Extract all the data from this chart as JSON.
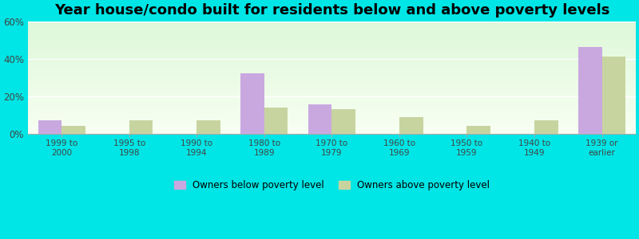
{
  "title": "Year house/condo built for residents below and above poverty levels",
  "categories": [
    "1999 to\n2000",
    "1995 to\n1998",
    "1990 to\n1994",
    "1980 to\n1989",
    "1970 to\n1979",
    "1960 to\n1969",
    "1950 to\n1959",
    "1940 to\n1949",
    "1939 or\nearlier"
  ],
  "below_poverty": [
    7.0,
    0.0,
    0.0,
    32.0,
    15.5,
    0.0,
    0.0,
    0.0,
    46.0
  ],
  "above_poverty": [
    4.0,
    7.0,
    7.0,
    14.0,
    13.0,
    9.0,
    4.0,
    7.0,
    41.0
  ],
  "below_color": "#c9a8e0",
  "above_color": "#c8d4a0",
  "ylim": [
    0,
    60
  ],
  "yticks": [
    0,
    20,
    40,
    60
  ],
  "ytick_labels": [
    "0%",
    "20%",
    "40%",
    "60%"
  ],
  "outer_color": "#00e5e5",
  "title_fontsize": 13,
  "legend_below_label": "Owners below poverty level",
  "legend_above_label": "Owners above poverty level",
  "bar_width": 0.35
}
